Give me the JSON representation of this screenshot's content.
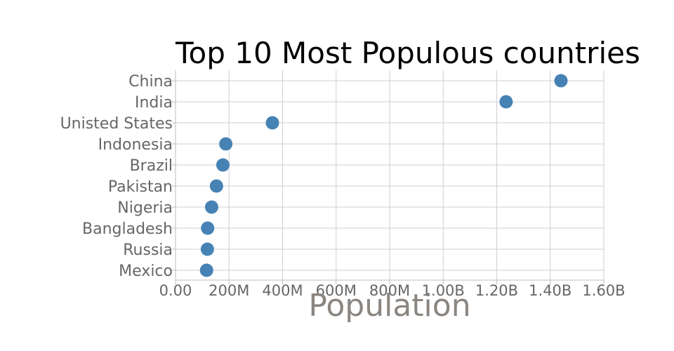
{
  "chart_data": {
    "type": "scatter",
    "title": "Top 10 Most Populous countries",
    "xlabel": "Population",
    "ylabel": "",
    "categories": [
      "China",
      "India",
      "Unisted States",
      "Indonesia",
      "Brazil",
      "Pakistan",
      "Nigeria",
      "Bangladesh",
      "Russia",
      "Mexico"
    ],
    "values": [
      1440000000,
      1235000000,
      362000000,
      188000000,
      177000000,
      153000000,
      135000000,
      120000000,
      119000000,
      116000000
    ],
    "xlim": [
      0,
      1600000000
    ],
    "xticks": [
      0,
      200000000,
      400000000,
      600000000,
      800000000,
      1000000000,
      1200000000,
      1400000000,
      1600000000
    ],
    "xtick_labels": [
      "0.00",
      "200M",
      "400M",
      "600M",
      "800M",
      "1.00B",
      "1.20B",
      "1.40B",
      "1.60B"
    ],
    "marker_color": "#4682b4",
    "grid": true,
    "legend": "none"
  }
}
